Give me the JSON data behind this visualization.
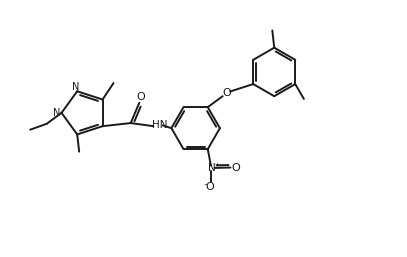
{
  "bg_color": "#ffffff",
  "line_color": "#1a1a1a",
  "line_width": 1.4,
  "fig_width": 4.07,
  "fig_height": 2.57,
  "dpi": 100,
  "xlim": [
    0,
    10.2
  ],
  "ylim": [
    0,
    6.5
  ]
}
